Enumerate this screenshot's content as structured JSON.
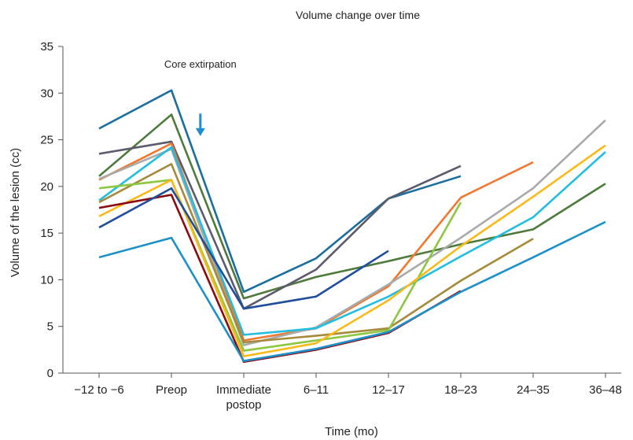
{
  "chart_data": {
    "type": "line",
    "title": "Volume change over time",
    "xlabel": "Time (mo)",
    "ylabel": "Volume of the lesion (cc)",
    "categories": [
      "−12 to −6",
      "Preop",
      "Immediate postop",
      "6–11",
      "12–17",
      "18–23",
      "24–35",
      "36–48"
    ],
    "category_lines": [
      [
        "−12 to −6"
      ],
      [
        "Preop"
      ],
      [
        "Immediate",
        "postop"
      ],
      [
        "6–11"
      ],
      [
        "12–17"
      ],
      [
        "18–23"
      ],
      [
        "24–35"
      ],
      [
        "36–48"
      ]
    ],
    "ylim": [
      0,
      35
    ],
    "yticks": [
      0,
      5,
      10,
      15,
      20,
      25,
      30,
      35
    ],
    "grid": false,
    "annotation": {
      "text": "Core extirpation",
      "arrow_at_x": 1.4,
      "arrow_from_y": 27.8,
      "arrow_to_y": 25.4
    },
    "series": [
      {
        "color": "#1a6e9e",
        "values": [
          26.2,
          30.3,
          8.7,
          12.3,
          18.7,
          21.1,
          null,
          null
        ]
      },
      {
        "color": "#4d7a3b",
        "values": [
          21.1,
          27.7,
          8.0,
          10.3,
          12.0,
          13.8,
          15.4,
          20.3
        ]
      },
      {
        "color": "#5b5b6b",
        "values": [
          23.5,
          24.8,
          6.9,
          11.1,
          18.7,
          22.2,
          null,
          null
        ]
      },
      {
        "color": "#f07830",
        "values": [
          20.7,
          24.6,
          3.5,
          4.8,
          9.3,
          18.8,
          22.6,
          null
        ]
      },
      {
        "color": "#a9a9a9",
        "values": [
          20.8,
          24.0,
          3.0,
          4.9,
          9.5,
          14.5,
          19.8,
          27.1
        ]
      },
      {
        "color": "#22bde0",
        "values": [
          18.5,
          24.2,
          4.1,
          4.8,
          8.2,
          12.5,
          16.7,
          23.7
        ]
      },
      {
        "color": "#a48a3a",
        "values": [
          18.3,
          22.4,
          3.3,
          4.0,
          4.8,
          9.9,
          14.4,
          null
        ]
      },
      {
        "color": "#8dc63f",
        "values": [
          19.8,
          20.7,
          2.4,
          3.5,
          4.6,
          18.3,
          null,
          null
        ]
      },
      {
        "color": "#fbb917",
        "values": [
          16.8,
          20.7,
          1.8,
          3.2,
          7.8,
          13.6,
          18.9,
          24.4
        ]
      },
      {
        "color": "#8b0a0f",
        "values": [
          17.7,
          19.1,
          1.2,
          2.5,
          4.3,
          8.8,
          null,
          null
        ]
      },
      {
        "color": "#1f4e9c",
        "values": [
          15.6,
          19.8,
          6.9,
          8.2,
          13.1,
          null,
          null,
          null
        ]
      },
      {
        "color": "#1e90c8",
        "values": [
          12.4,
          14.5,
          1.3,
          2.6,
          4.4,
          8.7,
          12.4,
          16.2
        ]
      }
    ]
  }
}
